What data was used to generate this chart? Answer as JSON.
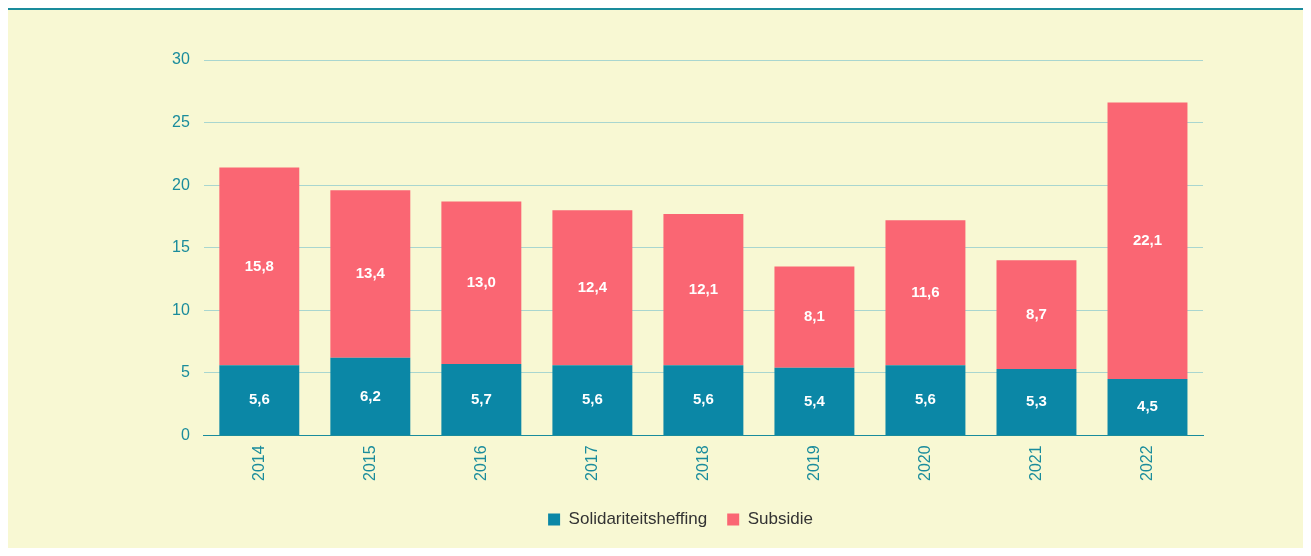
{
  "chart_data": {
    "type": "bar",
    "stacked": true,
    "categories": [
      "2014",
      "2015",
      "2016",
      "2017",
      "2018",
      "2019",
      "2020",
      "2021",
      "2022"
    ],
    "series": [
      {
        "name": "Solidariteitsheffing",
        "color": "#0b87a6",
        "values": [
          5.6,
          6.2,
          5.7,
          5.6,
          5.6,
          5.4,
          5.6,
          5.3,
          4.5
        ],
        "value_labels": [
          "5,6",
          "6,2",
          "5,7",
          "5,6",
          "5,6",
          "5,4",
          "5,6",
          "5,3",
          "4,5"
        ]
      },
      {
        "name": "Subsidie",
        "color": "#fa6673",
        "values": [
          15.8,
          13.4,
          13.0,
          12.4,
          12.1,
          8.1,
          11.6,
          8.7,
          22.1
        ],
        "value_labels": [
          "15,8",
          "13,4",
          "13,0",
          "12,4",
          "12,1",
          "8,1",
          "11,6",
          "8,7",
          "22,1"
        ]
      }
    ],
    "ylim": [
      0,
      30
    ],
    "yticks": [
      0,
      5,
      10,
      15,
      20,
      25,
      30
    ],
    "grid": "y",
    "legend": "bottom"
  }
}
